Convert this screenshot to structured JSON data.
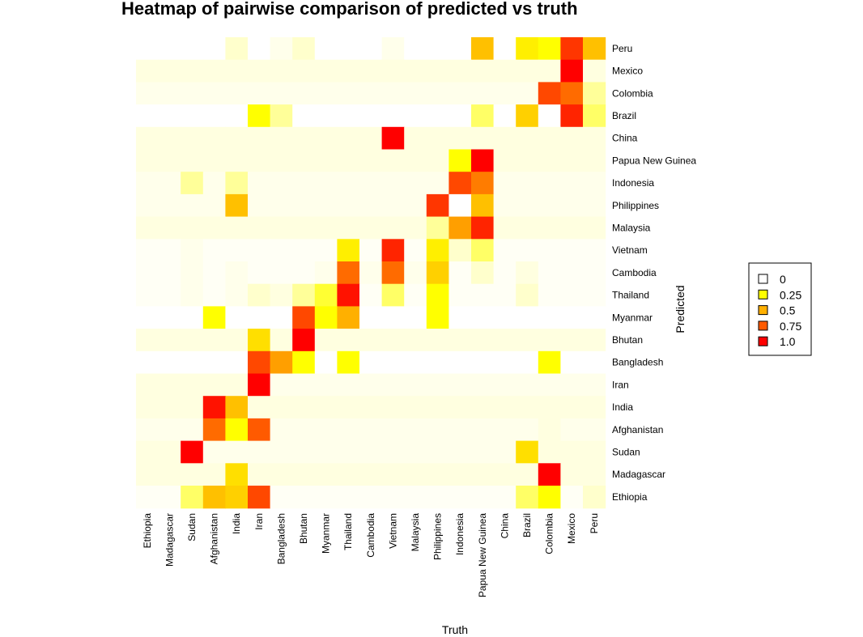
{
  "chart_data": {
    "type": "heatmap",
    "title": "Heatmap of pairwise comparison of predicted vs truth",
    "xlabel": "Truth",
    "ylabel": "Predicted",
    "countries": [
      "Ethiopia",
      "Madagascar",
      "Sudan",
      "Afghanistan",
      "India",
      "Iran",
      "Bangladesh",
      "Bhutan",
      "Myanmar",
      "Thailand",
      "Cambodia",
      "Vietnam",
      "Malaysia",
      "Philippines",
      "Indonesia",
      "Papua New Guinea",
      "China",
      "Brazil",
      "Colombia",
      "Mexico",
      "Peru"
    ],
    "x_categories": [
      "Ethiopia",
      "Madagascar",
      "Sudan",
      "Afghanistan",
      "India",
      "Iran",
      "Bangladesh",
      "Bhutan",
      "Myanmar",
      "Thailand",
      "Cambodia",
      "Vietnam",
      "Malaysia",
      "Philippines",
      "Indonesia",
      "Papua New Guinea",
      "China",
      "Brazil",
      "Colombia",
      "Mexico",
      "Peru"
    ],
    "y_categories_top_to_bottom": [
      "Peru",
      "Mexico",
      "Colombia",
      "Brazil",
      "China",
      "Papua New Guinea",
      "Indonesia",
      "Philippines",
      "Malaysia",
      "Vietnam",
      "Cambodia",
      "Thailand",
      "Myanmar",
      "Bhutan",
      "Bangladesh",
      "Iran",
      "India",
      "Afghanistan",
      "Sudan",
      "Madagascar",
      "Ethiopia"
    ],
    "values_rows_top_to_bottom": [
      [
        0.0,
        0.0,
        0.0,
        0.0,
        0.05,
        0.0,
        0.02,
        0.05,
        0.0,
        0.0,
        0.0,
        0.02,
        0.0,
        0.0,
        0.0,
        0.45,
        0.0,
        0.3,
        0.25,
        0.85,
        0.45
      ],
      [
        0.03,
        0.03,
        0.03,
        0.03,
        0.03,
        0.03,
        0.03,
        0.03,
        0.03,
        0.03,
        0.03,
        0.03,
        0.03,
        0.03,
        0.03,
        0.03,
        0.03,
        0.03,
        0.03,
        1.0,
        0.03
      ],
      [
        0.02,
        0.02,
        0.02,
        0.02,
        0.02,
        0.02,
        0.02,
        0.02,
        0.02,
        0.02,
        0.02,
        0.02,
        0.02,
        0.02,
        0.02,
        0.02,
        0.02,
        0.02,
        0.8,
        0.7,
        0.1
      ],
      [
        0.0,
        0.0,
        0.0,
        0.0,
        0.0,
        0.25,
        0.1,
        0.0,
        0.0,
        0.0,
        0.0,
        0.0,
        0.0,
        0.0,
        0.0,
        0.15,
        0.0,
        0.4,
        0.0,
        0.9,
        0.15
      ],
      [
        0.03,
        0.03,
        0.03,
        0.03,
        0.03,
        0.03,
        0.03,
        0.03,
        0.03,
        0.03,
        0.03,
        1.0,
        0.03,
        0.03,
        0.03,
        0.03,
        0.03,
        0.03,
        0.03,
        0.03,
        0.03
      ],
      [
        0.03,
        0.03,
        0.03,
        0.03,
        0.03,
        0.03,
        0.03,
        0.03,
        0.03,
        0.03,
        0.03,
        0.03,
        0.03,
        0.03,
        0.25,
        1.0,
        0.03,
        0.03,
        0.03,
        0.03,
        0.03
      ],
      [
        0.02,
        0.02,
        0.1,
        0.02,
        0.1,
        0.02,
        0.02,
        0.02,
        0.02,
        0.02,
        0.02,
        0.02,
        0.02,
        0.02,
        0.8,
        0.65,
        0.02,
        0.02,
        0.02,
        0.02,
        0.02
      ],
      [
        0.02,
        0.02,
        0.02,
        0.02,
        0.45,
        0.02,
        0.02,
        0.02,
        0.02,
        0.02,
        0.02,
        0.02,
        0.02,
        0.85,
        0.0,
        0.45,
        0.02,
        0.02,
        0.02,
        0.02,
        0.02
      ],
      [
        0.03,
        0.03,
        0.03,
        0.03,
        0.03,
        0.03,
        0.03,
        0.03,
        0.03,
        0.03,
        0.03,
        0.03,
        0.03,
        0.1,
        0.55,
        0.9,
        0.03,
        0.03,
        0.03,
        0.03,
        0.03
      ],
      [
        0.01,
        0.01,
        0.02,
        0.01,
        0.01,
        0.01,
        0.01,
        0.01,
        0.01,
        0.3,
        0.01,
        0.9,
        0.01,
        0.3,
        0.05,
        0.15,
        0.01,
        0.01,
        0.01,
        0.01,
        0.01
      ],
      [
        0.01,
        0.01,
        0.02,
        0.01,
        0.02,
        0.01,
        0.01,
        0.01,
        0.02,
        0.7,
        0.02,
        0.7,
        0.02,
        0.4,
        0.01,
        0.05,
        0.01,
        0.03,
        0.01,
        0.01,
        0.01
      ],
      [
        0.01,
        0.01,
        0.02,
        0.01,
        0.02,
        0.05,
        0.03,
        0.1,
        0.2,
        0.95,
        0.01,
        0.15,
        0.01,
        0.25,
        0.01,
        0.01,
        0.01,
        0.05,
        0.01,
        0.01,
        0.01
      ],
      [
        0.0,
        0.0,
        0.0,
        0.25,
        0.0,
        0.0,
        0.0,
        0.8,
        0.25,
        0.5,
        0.0,
        0.0,
        0.0,
        0.25,
        0.0,
        0.0,
        0.0,
        0.0,
        0.0,
        0.0,
        0.0
      ],
      [
        0.03,
        0.03,
        0.03,
        0.03,
        0.03,
        0.35,
        0.03,
        1.0,
        0.03,
        0.03,
        0.03,
        0.03,
        0.03,
        0.03,
        0.03,
        0.03,
        0.03,
        0.03,
        0.03,
        0.03,
        0.03
      ],
      [
        0.0,
        0.0,
        0.0,
        0.0,
        0.0,
        0.8,
        0.55,
        0.25,
        0.0,
        0.25,
        0.0,
        0.0,
        0.0,
        0.0,
        0.0,
        0.0,
        0.0,
        0.0,
        0.25,
        0.0,
        0.0
      ],
      [
        0.03,
        0.03,
        0.03,
        0.03,
        0.03,
        1.0,
        0.02,
        0.02,
        0.02,
        0.02,
        0.02,
        0.02,
        0.02,
        0.02,
        0.02,
        0.02,
        0.02,
        0.02,
        0.02,
        0.02,
        0.02
      ],
      [
        0.03,
        0.03,
        0.03,
        0.95,
        0.45,
        0.03,
        0.03,
        0.03,
        0.03,
        0.03,
        0.03,
        0.03,
        0.03,
        0.03,
        0.03,
        0.03,
        0.03,
        0.03,
        0.03,
        0.03,
        0.03
      ],
      [
        0.02,
        0.02,
        0.02,
        0.7,
        0.25,
        0.75,
        0.02,
        0.02,
        0.02,
        0.02,
        0.02,
        0.02,
        0.02,
        0.02,
        0.02,
        0.02,
        0.02,
        0.02,
        0.03,
        0.02,
        0.02
      ],
      [
        0.03,
        0.03,
        1.0,
        0.02,
        0.02,
        0.02,
        0.02,
        0.02,
        0.02,
        0.02,
        0.02,
        0.02,
        0.02,
        0.02,
        0.02,
        0.02,
        0.02,
        0.35,
        0.03,
        0.03,
        0.03
      ],
      [
        0.03,
        0.03,
        0.03,
        0.03,
        0.35,
        0.03,
        0.03,
        0.03,
        0.03,
        0.03,
        0.03,
        0.03,
        0.03,
        0.03,
        0.03,
        0.03,
        0.03,
        0.03,
        1.0,
        0.03,
        0.03
      ],
      [
        0.01,
        0.01,
        0.15,
        0.45,
        0.4,
        0.8,
        0.01,
        0.01,
        0.01,
        0.01,
        0.01,
        0.01,
        0.01,
        0.01,
        0.01,
        0.01,
        0.01,
        0.15,
        0.25,
        0.01,
        0.05
      ]
    ],
    "value_range": [
      0,
      1
    ],
    "color_scale": {
      "stops": [
        0,
        0.25,
        0.5,
        0.75,
        1.0
      ],
      "colors": [
        "#FFFFFF",
        "#FFFF00",
        "#FFB000",
        "#FF5A00",
        "#FF0000"
      ]
    },
    "legend": {
      "placement": "right",
      "entries": [
        {
          "label": "0",
          "color": "#FFFFFF"
        },
        {
          "label": "0.25",
          "color": "#FFFF00"
        },
        {
          "label": "0.5",
          "color": "#FFB000"
        },
        {
          "label": "0.75",
          "color": "#FF5A00"
        },
        {
          "label": "1.0",
          "color": "#FF0000"
        }
      ]
    },
    "grid": false
  }
}
